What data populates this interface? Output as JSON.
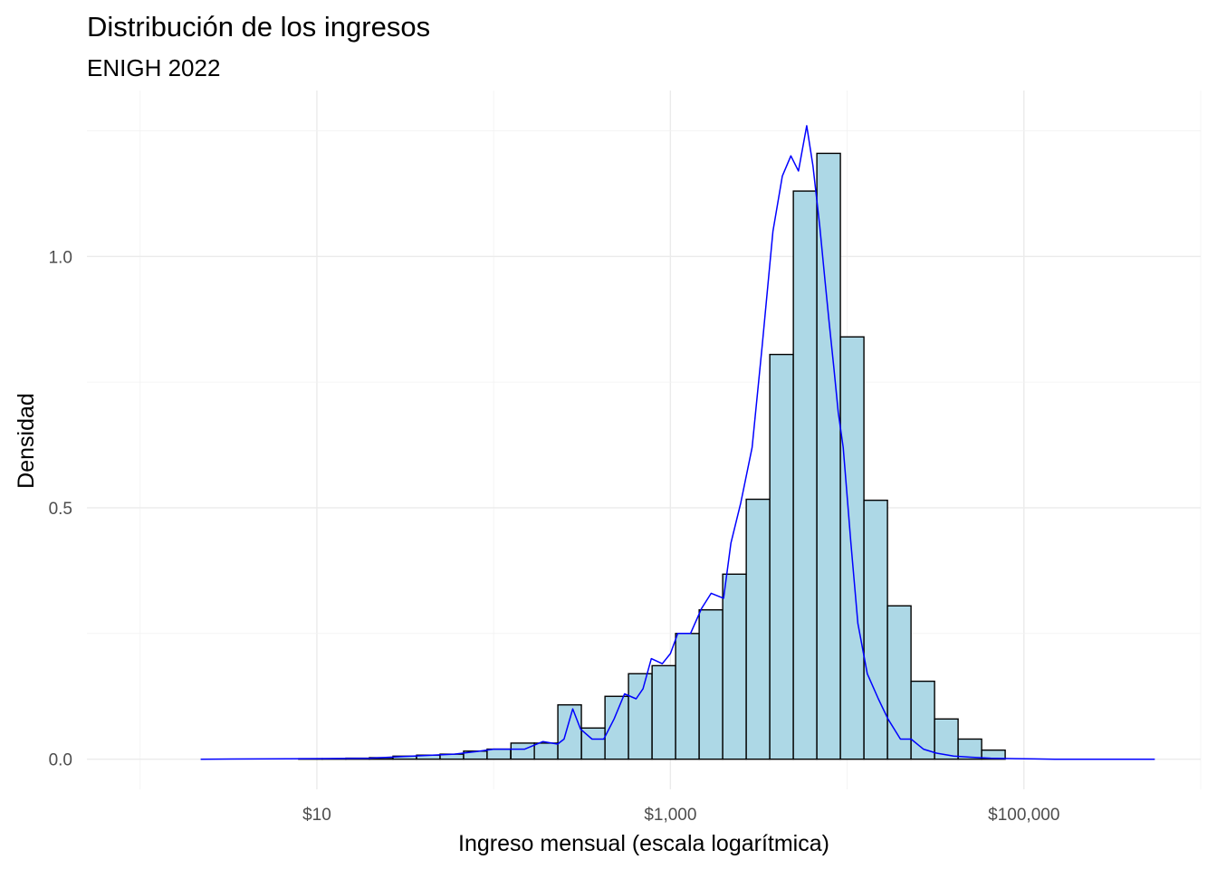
{
  "chart_data": {
    "type": "bar",
    "title": "Distribución de los ingresos",
    "subtitle": "ENIGH 2022",
    "xlabel": "Ingreso mensual (escala logarítmica)",
    "ylabel": "Densidad",
    "x_scale": "log10",
    "xlim": [
      0.5,
      1000000
    ],
    "ylim": [
      -0.06,
      1.33
    ],
    "x_ticks": [
      {
        "value": 10,
        "label": "$10"
      },
      {
        "value": 1000,
        "label": "$1,000"
      },
      {
        "value": 100000,
        "label": "$100,000"
      }
    ],
    "y_ticks": [
      {
        "value": 0,
        "label": "0.0"
      },
      {
        "value": 0.5,
        "label": "0.5"
      },
      {
        "value": 1.0,
        "label": "1.0"
      }
    ],
    "grid": true,
    "colors": {
      "bar_fill": "#add8e6",
      "bar_edge": "#000000",
      "density_line": "#0000ff",
      "grid": "#ebebeb"
    },
    "histogram": {
      "bin_width_log10": 0.133,
      "bins": [
        {
          "x": 5.0,
          "density": 0.0
        },
        {
          "x": 6.8,
          "density": 0.0
        },
        {
          "x": 9.2,
          "density": 0.001
        },
        {
          "x": 12.5,
          "density": 0.001
        },
        {
          "x": 17.0,
          "density": 0.002
        },
        {
          "x": 23.1,
          "density": 0.003
        },
        {
          "x": 31.4,
          "density": 0.006
        },
        {
          "x": 42.7,
          "density": 0.008
        },
        {
          "x": 58.0,
          "density": 0.01
        },
        {
          "x": 78.8,
          "density": 0.016
        },
        {
          "x": 107,
          "density": 0.02
        },
        {
          "x": 146,
          "density": 0.032
        },
        {
          "x": 198,
          "density": 0.032
        },
        {
          "x": 269,
          "density": 0.108
        },
        {
          "x": 366,
          "density": 0.062
        },
        {
          "x": 497,
          "density": 0.125
        },
        {
          "x": 675,
          "density": 0.17
        },
        {
          "x": 918,
          "density": 0.186
        },
        {
          "x": 1247,
          "density": 0.25
        },
        {
          "x": 1695,
          "density": 0.297
        },
        {
          "x": 2303,
          "density": 0.368
        },
        {
          "x": 3130,
          "density": 0.517
        },
        {
          "x": 4253,
          "density": 0.805
        },
        {
          "x": 5780,
          "density": 1.13
        },
        {
          "x": 7854,
          "density": 1.205
        },
        {
          "x": 10673,
          "density": 0.84
        },
        {
          "x": 14503,
          "density": 0.515
        },
        {
          "x": 19709,
          "density": 0.305
        },
        {
          "x": 26782,
          "density": 0.155
        },
        {
          "x": 36395,
          "density": 0.08
        },
        {
          "x": 49457,
          "density": 0.04
        },
        {
          "x": 67207,
          "density": 0.018
        }
      ]
    },
    "density_curve": {
      "x": [
        2.2,
        10,
        20,
        30,
        45,
        60,
        80,
        100,
        150,
        190,
        230,
        250,
        280,
        310,
        360,
        420,
        480,
        550,
        640,
        700,
        780,
        900,
        1000,
        1100,
        1300,
        1500,
        1700,
        2000,
        2200,
        2500,
        2900,
        3300,
        3800,
        4300,
        4800,
        5300,
        5900,
        6400,
        7000,
        7500,
        7900,
        8400,
        8900,
        9500,
        10500,
        11500,
        13000,
        15000,
        17000,
        20000,
        23000,
        27000,
        32000,
        40000,
        50000,
        65000,
        90000,
        150000,
        300000,
        550000
      ],
      "y": [
        0.0,
        0.001,
        0.002,
        0.005,
        0.008,
        0.01,
        0.015,
        0.02,
        0.02,
        0.035,
        0.03,
        0.04,
        0.1,
        0.06,
        0.04,
        0.04,
        0.08,
        0.13,
        0.12,
        0.14,
        0.2,
        0.19,
        0.21,
        0.25,
        0.25,
        0.3,
        0.33,
        0.32,
        0.43,
        0.51,
        0.62,
        0.82,
        1.05,
        1.16,
        1.2,
        1.17,
        1.26,
        1.18,
        1.06,
        0.95,
        0.87,
        0.78,
        0.69,
        0.62,
        0.43,
        0.27,
        0.17,
        0.12,
        0.08,
        0.04,
        0.04,
        0.02,
        0.012,
        0.006,
        0.004,
        0.002,
        0.001,
        0.0,
        0.0,
        0.0
      ]
    }
  }
}
